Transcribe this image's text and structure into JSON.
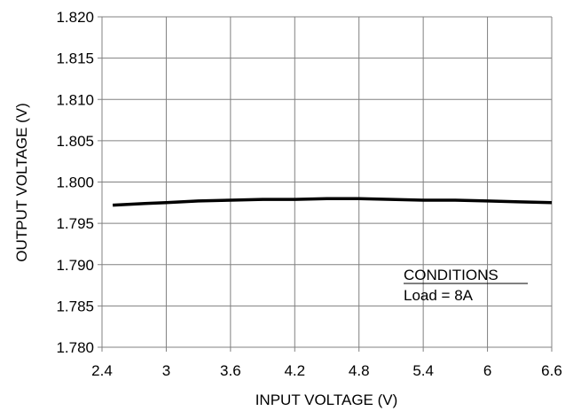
{
  "chart_data": {
    "type": "line",
    "title": "",
    "xlabel": "INPUT VOLTAGE (V)",
    "ylabel": "OUTPUT VOLTAGE (V)",
    "xlim": [
      2.4,
      6.6
    ],
    "ylim": [
      1.78,
      1.82
    ],
    "x_ticks": [
      "2.4",
      "3",
      "3.6",
      "4.2",
      "4.8",
      "5.4",
      "6",
      "6.6"
    ],
    "y_ticks": [
      "1.780",
      "1.785",
      "1.790",
      "1.795",
      "1.800",
      "1.805",
      "1.810",
      "1.815",
      "1.820"
    ],
    "grid": true,
    "series": [
      {
        "x": [
          2.5,
          2.8,
          3.0,
          3.3,
          3.6,
          3.9,
          4.2,
          4.5,
          4.8,
          5.1,
          5.4,
          5.7,
          6.0,
          6.3,
          6.6
        ],
        "y": [
          1.7972,
          1.7974,
          1.7975,
          1.7977,
          1.7978,
          1.7979,
          1.7979,
          1.798,
          1.798,
          1.7979,
          1.7978,
          1.7978,
          1.7977,
          1.7976,
          1.7975
        ]
      }
    ],
    "annotation": {
      "heading": "CONDITIONS",
      "text": "Load = 8A"
    },
    "colors": {
      "line": "#000000",
      "grid": "#808080",
      "axis": "#808080"
    }
  }
}
